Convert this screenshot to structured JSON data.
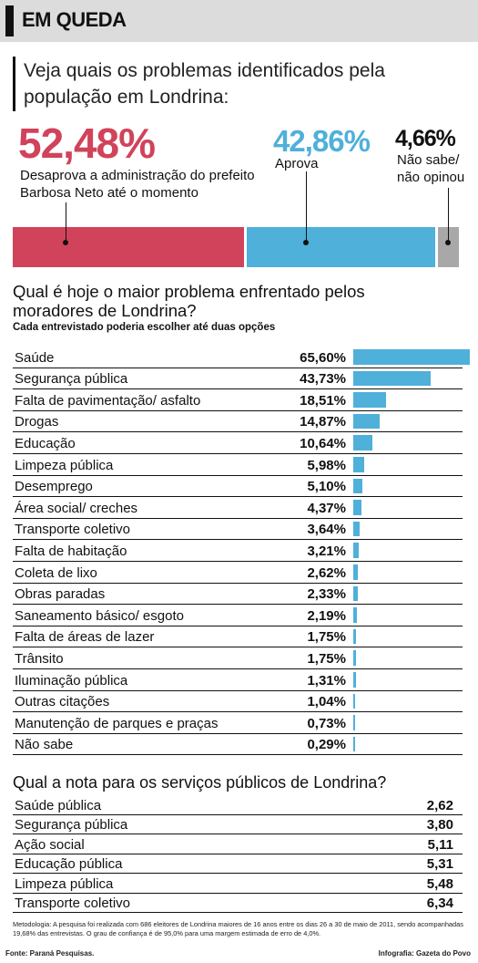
{
  "header": {
    "title": "EM QUEDA"
  },
  "intro": {
    "text": "Veja quais os problemas identificados pela população em Londrina:"
  },
  "approval": {
    "disapprove": {
      "value": "52,48%",
      "label_line1": "Desaprova a administração do prefeito",
      "label_line2": "Barbosa Neto até o momento",
      "share": 52.48,
      "color": "#d1435a"
    },
    "approve": {
      "value": "42,86%",
      "label": "Aprova",
      "share": 42.86,
      "color": "#4fb0d9"
    },
    "unsure": {
      "value": "4,66%",
      "label_line1": "Não sabe/",
      "label_line2": "não opinou",
      "share": 4.66,
      "color": "#a8a8a8"
    }
  },
  "problems": {
    "title_line1": "Qual é hoje o maior problema enfrentado pelos",
    "title_line2": "moradores de Londrina?",
    "note": "Cada entrevistado poderia escolher até duas opções"
  },
  "chart_data": {
    "type": "bar",
    "categories": [
      "Saúde",
      "Segurança pública",
      "Falta de pavimentação/ asfalto",
      "Drogas",
      "Educação",
      "Limpeza pública",
      "Desemprego",
      "Área social/ creches",
      "Transporte coletivo",
      "Falta de habitação",
      "Coleta de lixo",
      "Obras paradas",
      "Saneamento básico/ esgoto",
      "Falta de áreas de lazer",
      "Trânsito",
      "Iluminação pública",
      "Outras citações",
      "Manutenção de parques e praças",
      "Não sabe"
    ],
    "values": [
      65.6,
      43.73,
      18.51,
      14.87,
      10.64,
      5.98,
      5.1,
      4.37,
      3.64,
      3.21,
      2.62,
      2.33,
      2.19,
      1.75,
      1.75,
      1.31,
      1.04,
      0.73,
      0.29
    ],
    "value_labels": [
      "65,60%",
      "43,73%",
      "18,51%",
      "14,87%",
      "10,64%",
      "5,98%",
      "5,10%",
      "4,37%",
      "3,64%",
      "3,21%",
      "2,62%",
      "2,33%",
      "2,19%",
      "1,75%",
      "1,75%",
      "1,31%",
      "1,04%",
      "0,73%",
      "0,29%"
    ],
    "color": "#4fb0d9",
    "xlim": [
      0,
      65.6
    ]
  },
  "services": {
    "title": "Qual a nota para os serviços públicos de Londrina?",
    "items": [
      {
        "label": "Saúde pública",
        "score": "2,62"
      },
      {
        "label": "Segurança pública",
        "score": "3,80"
      },
      {
        "label": "Ação social",
        "score": "5,11"
      },
      {
        "label": "Educação pública",
        "score": "5,31"
      },
      {
        "label": "Limpeza pública",
        "score": "5,48"
      },
      {
        "label": "Transporte coletivo",
        "score": "6,34"
      }
    ]
  },
  "footer": {
    "methodology": "Metodologia: A pesquisa foi realizada com 686 eleitores de Londrina maiores de 16 anos entre os dias 26 a 30 de maio de 2011, sendo acompanhadas 19,68% das entrevistas. O grau de confiança é de 95,0% para uma margem estimada de erro de 4,0%.",
    "source": "Fonte: Paraná Pesquisas.",
    "credit": "Infografia: Gazeta do Povo"
  }
}
